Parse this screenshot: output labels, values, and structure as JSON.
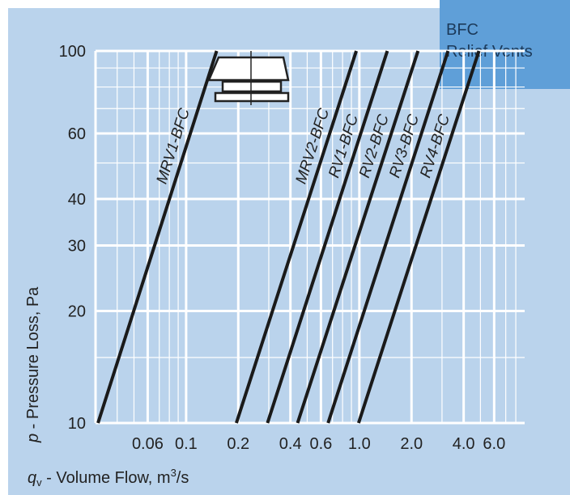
{
  "chart_data": {
    "type": "line",
    "title": "BFC Relief Vents",
    "title_lines": [
      "BFC",
      "Relief Vents"
    ],
    "xlabel_symbol": "q",
    "xlabel_subscript": "v",
    "xlabel_text": " - Volume Flow, m",
    "xlabel_sup": "3",
    "xlabel_tail": "/s",
    "ylabel_symbol": "p",
    "ylabel_text": " - Pressure Loss, Pa",
    "x_scale": "log",
    "y_scale": "log",
    "xlim": [
      0.03,
      9.0
    ],
    "ylim": [
      10,
      100
    ],
    "x_ticks": [
      {
        "value": 0.06,
        "label": "0.06"
      },
      {
        "value": 0.1,
        "label": "0.1"
      },
      {
        "value": 0.2,
        "label": "0.2"
      },
      {
        "value": 0.4,
        "label": "0.4"
      },
      {
        "value": 0.6,
        "label": "0.6"
      },
      {
        "value": 1.0,
        "label": "1.0"
      },
      {
        "value": 2.0,
        "label": "2.0"
      },
      {
        "value": 4.0,
        "label": "4.0"
      },
      {
        "value": 6.0,
        "label": "6.0"
      }
    ],
    "y_ticks": [
      {
        "value": 10,
        "label": "10"
      },
      {
        "value": 20,
        "label": "20"
      },
      {
        "value": 30,
        "label": "30"
      },
      {
        "value": 40,
        "label": "40"
      },
      {
        "value": 60,
        "label": "60"
      },
      {
        "value": 100,
        "label": "100"
      }
    ],
    "grid": true,
    "series": [
      {
        "name": "MRV1-BFC",
        "points": [
          [
            0.031,
            10
          ],
          [
            0.15,
            100
          ]
        ]
      },
      {
        "name": "MRV2-BFC",
        "points": [
          [
            0.195,
            10
          ],
          [
            0.96,
            100
          ]
        ]
      },
      {
        "name": "RV1-BFC",
        "points": [
          [
            0.295,
            10
          ],
          [
            1.45,
            100
          ]
        ]
      },
      {
        "name": "RV2-BFC",
        "points": [
          [
            0.44,
            10
          ],
          [
            2.18,
            100
          ]
        ]
      },
      {
        "name": "RV3-BFC",
        "points": [
          [
            0.66,
            10
          ],
          [
            3.25,
            100
          ]
        ]
      },
      {
        "name": "RV4-BFC",
        "points": [
          [
            0.99,
            10
          ],
          [
            4.9,
            100
          ]
        ]
      }
    ]
  },
  "colors": {
    "background": "#bad3ec",
    "brand_box": "#5f9fd8",
    "grid": "#ffffff",
    "curve": "#1a1a1a"
  },
  "icons": [
    "relief-vent-icon"
  ]
}
